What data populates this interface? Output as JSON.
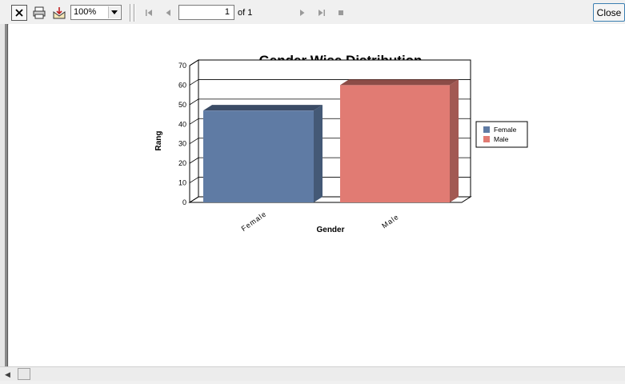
{
  "toolbar": {
    "icons": [
      "close-x-icon",
      "print-icon",
      "export-icon",
      "first-page-icon",
      "prev-page-icon",
      "next-page-icon",
      "last-page-icon",
      "stop-icon"
    ],
    "zoom_value": "100%",
    "page_number": "1",
    "page_of": "of 1",
    "close_label": "Close"
  },
  "report": {
    "title": "Gender Wise Distribution"
  },
  "chart_data": {
    "type": "bar",
    "title": "Gender Wise Distribution",
    "categories": [
      "Female",
      "Male"
    ],
    "values": [
      47,
      60
    ],
    "colors": [
      "#5f7ba4",
      "#e17b73"
    ],
    "xlabel": "Gender",
    "ylabel": "Rang",
    "ylim": [
      0,
      70
    ],
    "yticks": [
      "0",
      "10",
      "20",
      "30",
      "40",
      "50",
      "60",
      "70"
    ],
    "grid": true,
    "legend": {
      "position": "right",
      "entries": [
        "Female",
        "Male"
      ]
    }
  }
}
